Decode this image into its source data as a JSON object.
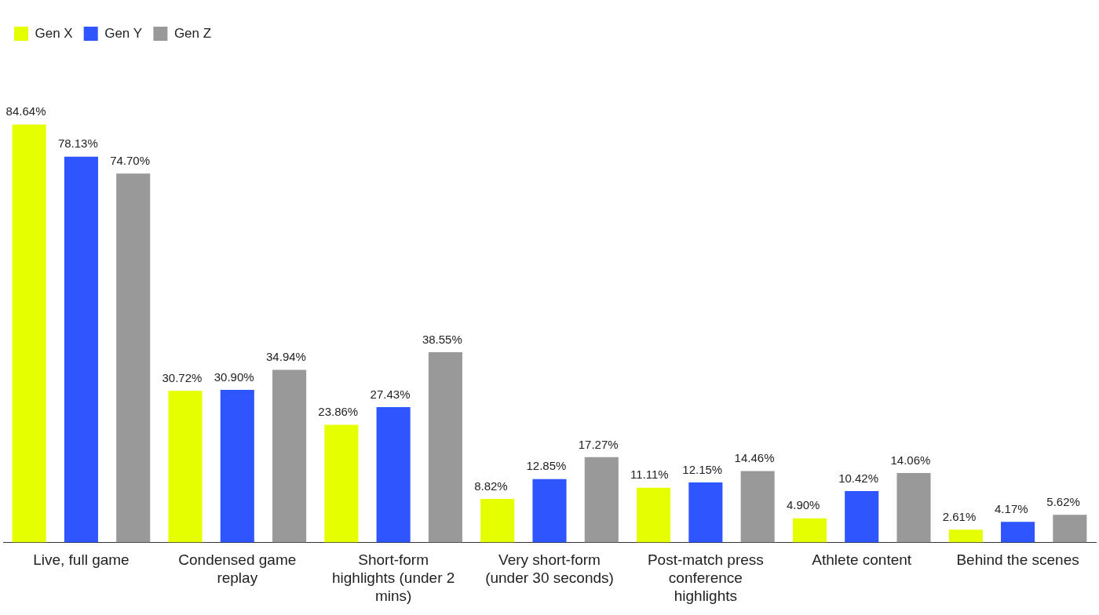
{
  "chart_data": {
    "type": "bar",
    "categories": [
      "Live, full game",
      "Condensed game replay",
      "Short-form highlights (under 2 mins)",
      "Very short-form (under 30 seconds)",
      "Post-match press conference highlights",
      "Athlete content",
      "Behind the scenes"
    ],
    "series": [
      {
        "name": "Gen X",
        "color": "#e5ff00",
        "values": [
          84.64,
          30.72,
          23.86,
          8.82,
          11.11,
          4.9,
          2.61
        ],
        "value_labels": [
          "84.64%",
          "30.72%",
          "23.86%",
          "8.82%",
          "11.11%",
          "4.90%",
          "2.61%"
        ]
      },
      {
        "name": "Gen Y",
        "color": "#2f55ff",
        "values": [
          78.13,
          30.9,
          27.43,
          12.85,
          12.15,
          10.42,
          4.17
        ],
        "value_labels": [
          "78.13%",
          "30.90%",
          "27.43%",
          "12.85%",
          "12.15%",
          "10.42%",
          "4.17%"
        ]
      },
      {
        "name": "Gen Z",
        "color": "#999999",
        "values": [
          74.7,
          34.94,
          38.55,
          17.27,
          14.46,
          14.06,
          5.62
        ],
        "value_labels": [
          "74.70%",
          "34.94%",
          "38.55%",
          "17.27%",
          "14.46%",
          "14.06%",
          "5.62%"
        ]
      }
    ],
    "grid": false,
    "legend": "top left"
  }
}
